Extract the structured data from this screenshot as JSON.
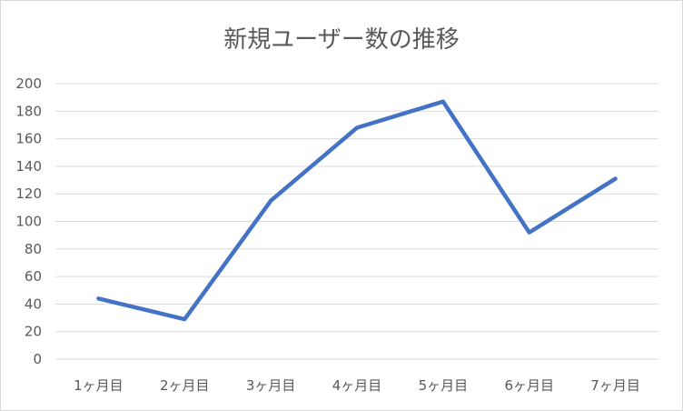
{
  "chart_data": {
    "type": "line",
    "title": "新規ユーザー数の推移",
    "xlabel": "",
    "ylabel": "",
    "categories": [
      "1ヶ月目",
      "2ヶ月目",
      "3ヶ月目",
      "4ヶ月目",
      "5ヶ月目",
      "6ヶ月目",
      "7ヶ月目"
    ],
    "series": [
      {
        "values": [
          44,
          29,
          115,
          168,
          187,
          92,
          131
        ],
        "color": "#4472c4"
      }
    ],
    "ylim": [
      0,
      200
    ],
    "yticks": [
      0,
      20,
      40,
      60,
      80,
      100,
      120,
      140,
      160,
      180,
      200
    ],
    "grid": true,
    "legend": "none"
  }
}
